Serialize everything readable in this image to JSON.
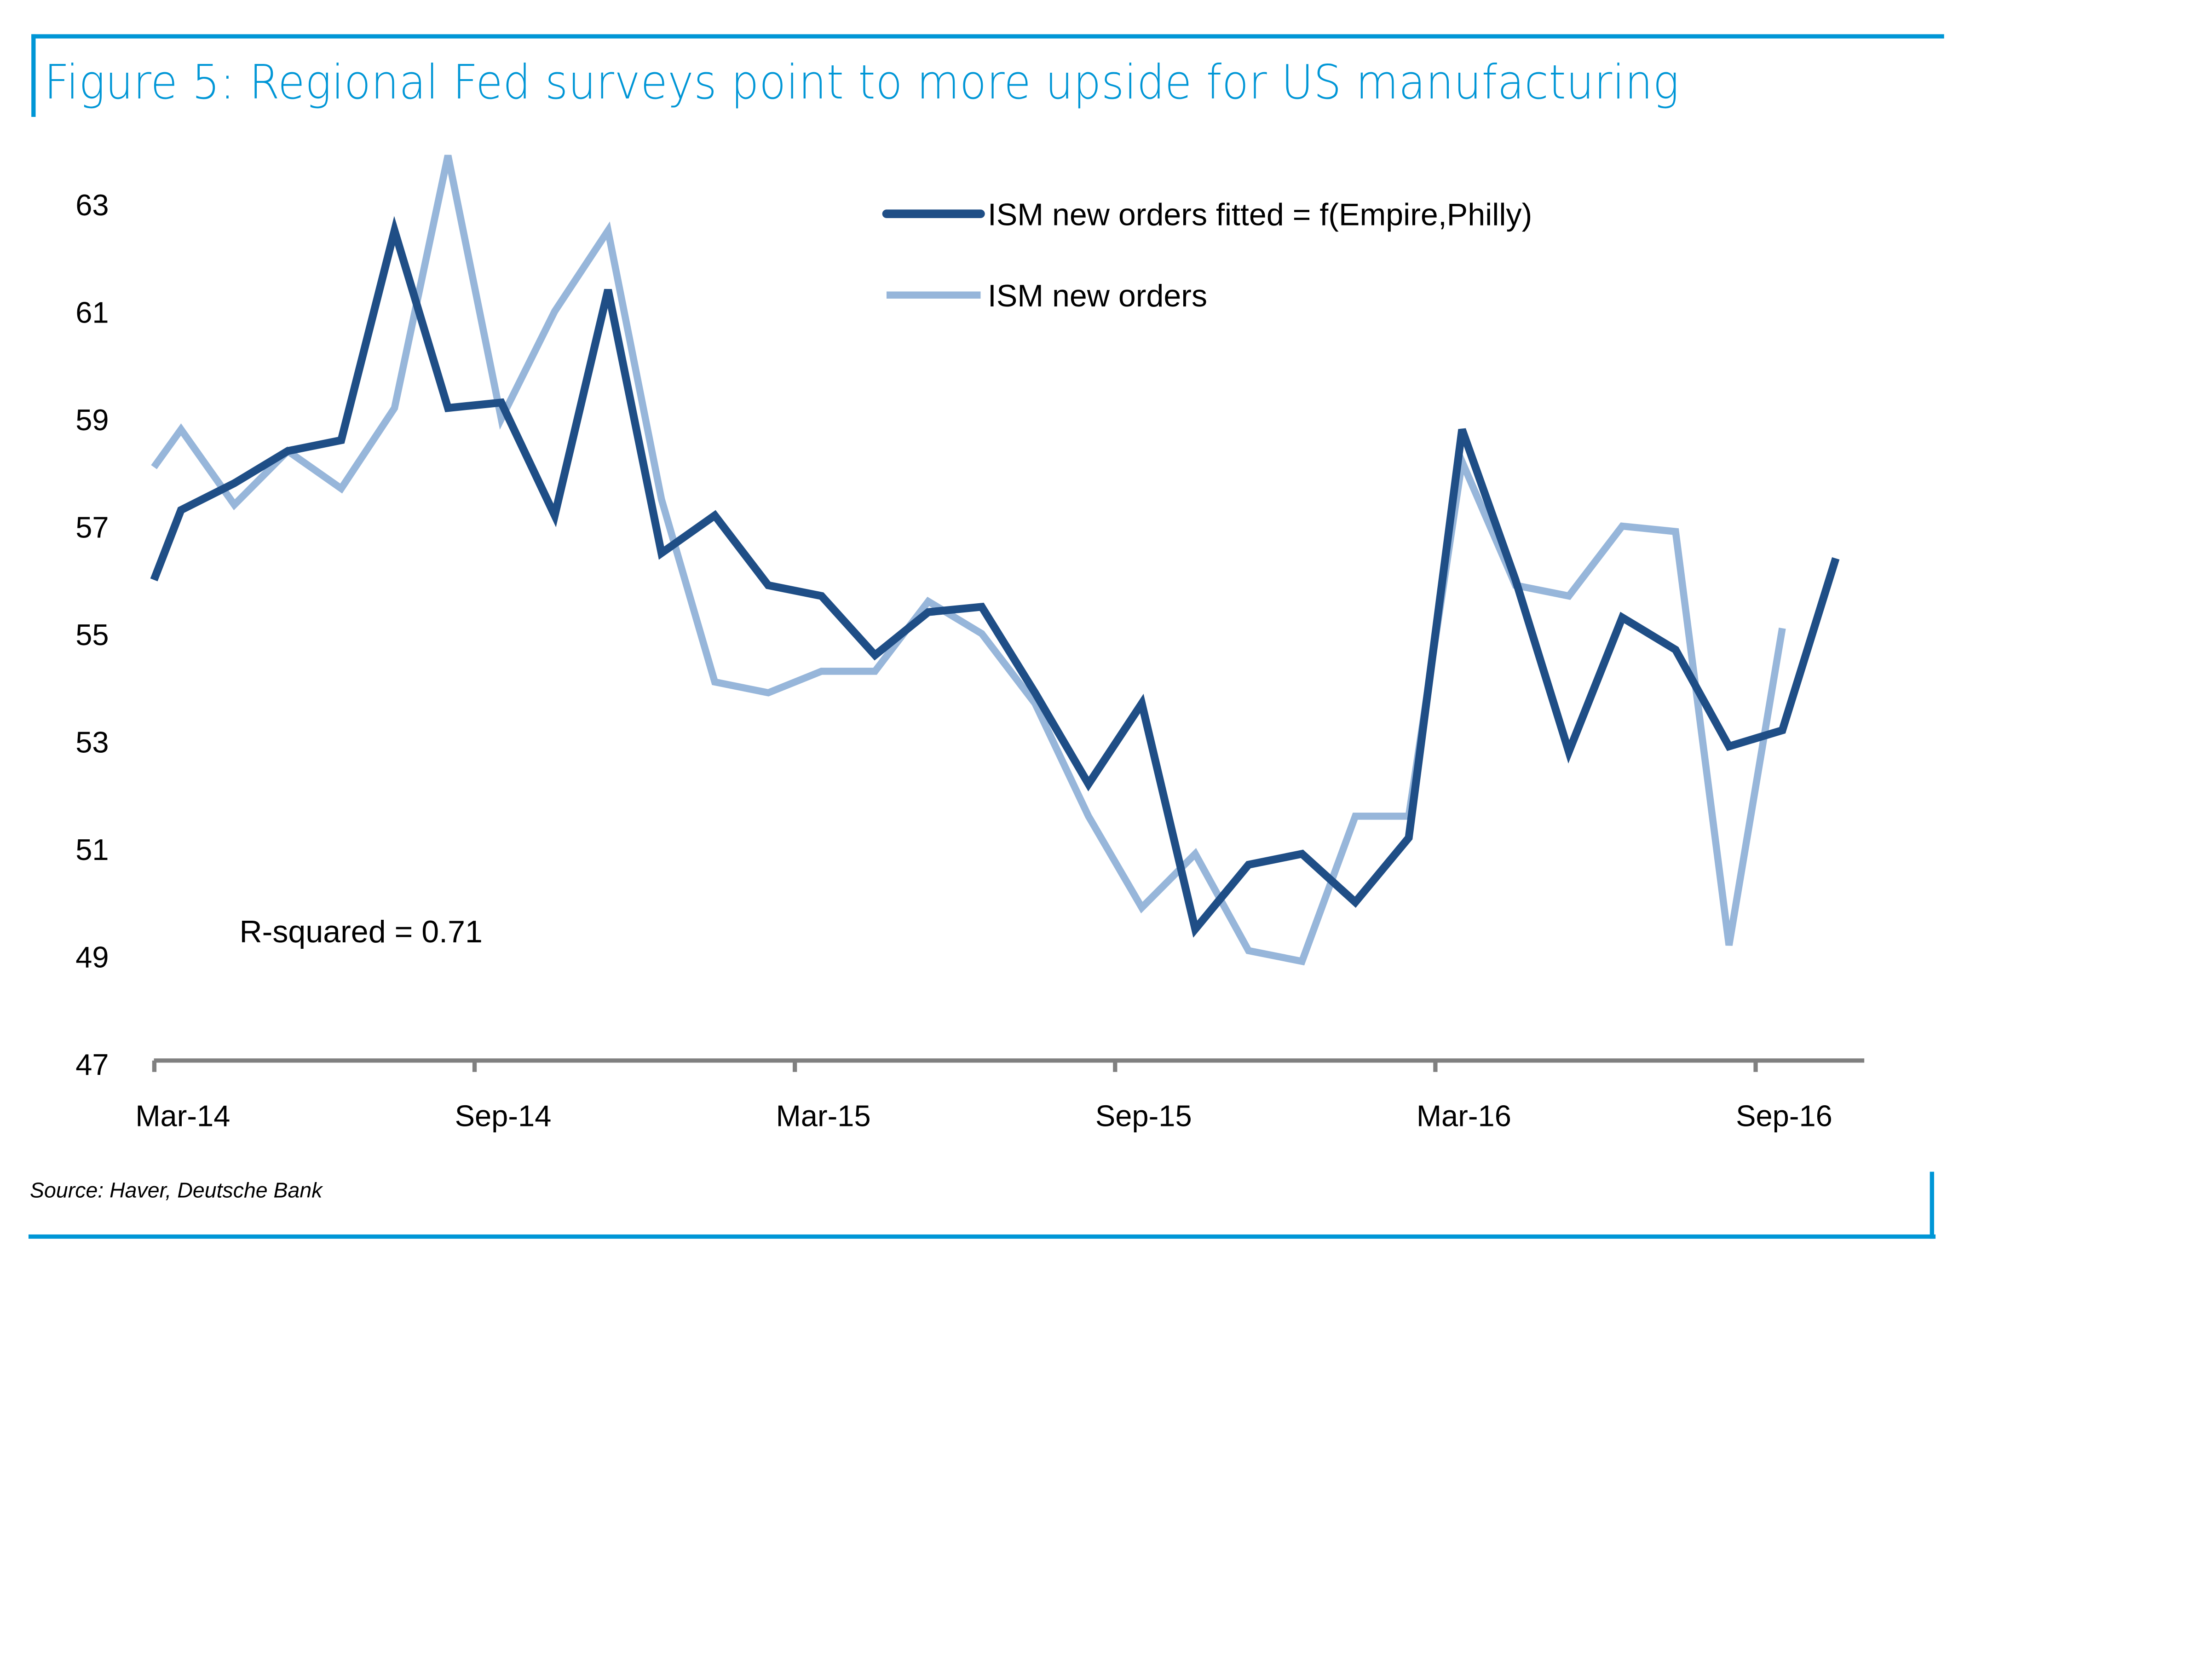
{
  "figure": {
    "title": "Figure 5: Regional Fed surveys point to more upside for US manufacturing",
    "source": "Source: Haver, Deutsche Bank",
    "annotation": "R-squared = 0.71"
  },
  "colors": {
    "accent": "#0096d6",
    "fitted": "#1f4e86",
    "actual": "#97b6da",
    "axis": "#808080"
  },
  "chart_data": {
    "type": "line",
    "title": "Figure 5: Regional Fed surveys point to more upside for US manufacturing",
    "xlabel": "",
    "ylabel": "",
    "ylim": [
      47,
      64
    ],
    "yticks": [
      47,
      49,
      51,
      53,
      55,
      57,
      59,
      61,
      63
    ],
    "xtick_labels": [
      "Mar-14",
      "Sep-14",
      "Mar-15",
      "Sep-15",
      "Mar-16",
      "Sep-16"
    ],
    "grid": false,
    "legend_position": "top-right",
    "x": [
      "Mar-14",
      "Apr-14",
      "May-14",
      "Jun-14",
      "Jul-14",
      "Aug-14",
      "Sep-14",
      "Oct-14",
      "Nov-14",
      "Dec-14",
      "Jan-15",
      "Feb-15",
      "Mar-15",
      "Apr-15",
      "May-15",
      "Jun-15",
      "Jul-15",
      "Aug-15",
      "Sep-15",
      "Oct-15",
      "Nov-15",
      "Dec-15",
      "Jan-16",
      "Feb-16",
      "Mar-16",
      "Apr-16",
      "May-16",
      "Jun-16",
      "Jul-16",
      "Aug-16",
      "Sep-16",
      "Oct-16"
    ],
    "series": [
      {
        "name": "ISM new orders fitted = f(Empire,Philly)",
        "values": [
          57.3,
          57.8,
          58.4,
          58.6,
          62.5,
          59.2,
          59.3,
          57.2,
          61.4,
          56.5,
          57.2,
          55.9,
          55.7,
          54.6,
          55.4,
          55.5,
          53.9,
          52.2,
          53.7,
          49.5,
          50.7,
          50.9,
          50.0,
          51.2,
          58.8,
          56.0,
          52.8,
          55.3,
          54.7,
          52.9,
          53.2,
          56.4
        ]
      },
      {
        "name": "ISM new orders",
        "values": [
          58.8,
          57.4,
          58.4,
          57.7,
          59.2,
          63.9,
          59.0,
          61.0,
          62.5,
          57.5,
          54.1,
          53.9,
          54.3,
          54.3,
          55.6,
          55.0,
          53.7,
          51.6,
          49.9,
          50.9,
          49.1,
          48.9,
          51.6,
          51.6,
          58.2,
          55.9,
          55.7,
          57.0,
          56.9,
          49.2,
          55.1,
          null
        ]
      }
    ],
    "annotations": [
      "R-squared = 0.71"
    ]
  }
}
